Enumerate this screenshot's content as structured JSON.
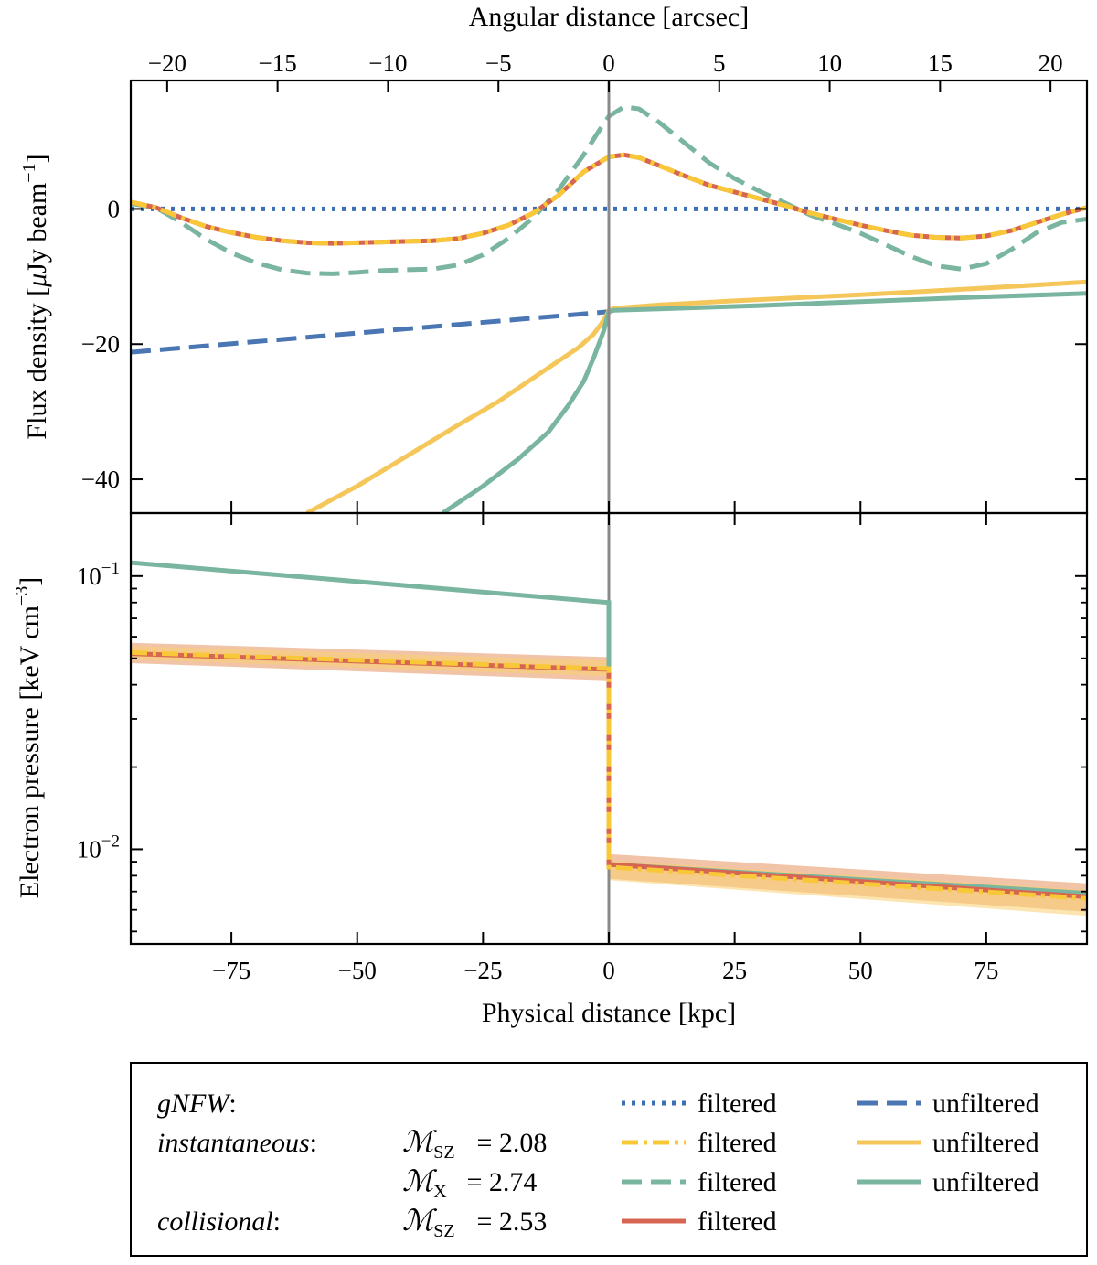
{
  "chart_data": [
    {
      "type": "line",
      "panel": "top",
      "xlabel_top": "Angular distance [arcsec]",
      "ylabel_prefix": "Flux density [",
      "ylabel_mu": "μ",
      "ylabel_unit": "Jy beam",
      "ylabel_exp": "−1",
      "ylabel_suffix": "]",
      "xlim_kpc": [
        -95,
        95
      ],
      "ylim": [
        -45,
        19
      ],
      "top_xticks": [
        -20,
        -15,
        -10,
        -5,
        0,
        5,
        10,
        15,
        20
      ],
      "top_xtick_labels": [
        "−20",
        "−15",
        "−10",
        "−5",
        "0",
        "5",
        "10",
        "15",
        "20"
      ],
      "yticks": [
        0,
        -20,
        -40
      ],
      "ytick_labels": [
        "0",
        "−20",
        "−40"
      ],
      "grid": false,
      "series": [
        {
          "id": "gnfw_filtered",
          "color": "#3b6eb5",
          "style": "dotted",
          "x": [
            -95,
            95
          ],
          "y": [
            0,
            0
          ]
        },
        {
          "id": "gnfw_unfiltered",
          "color": "#4a76b4",
          "style": "dashed",
          "x": [
            -95,
            0
          ],
          "y": [
            -21.2,
            -15.2
          ]
        },
        {
          "id": "inst_unfiltered",
          "color": "#f5c75a",
          "style": "solid",
          "x": [
            -60,
            -50,
            -40,
            -30,
            -22,
            -15,
            -10,
            -6,
            -3,
            -1.5,
            -0.5,
            0,
            1,
            10,
            25,
            50,
            75,
            95
          ],
          "y": [
            -45,
            -41,
            -36.5,
            -32,
            -28.5,
            -25,
            -22.5,
            -20.5,
            -18.5,
            -17,
            -15.8,
            -15,
            -14.7,
            -14.2,
            -13.6,
            -12.7,
            -11.7,
            -10.8
          ]
        },
        {
          "id": "mx_unfiltered",
          "color": "#7ab5a0",
          "style": "solid",
          "x": [
            -33,
            -25,
            -18,
            -12,
            -8,
            -5,
            -3,
            -2,
            -1,
            -0.3,
            0,
            1,
            10,
            30,
            50,
            75,
            95
          ],
          "y": [
            -45,
            -41,
            -37,
            -33,
            -29,
            -25.5,
            -22,
            -20,
            -18,
            -16,
            -15.2,
            -15,
            -14.8,
            -14.3,
            -13.7,
            -13,
            -12.5
          ]
        },
        {
          "id": "mx_filtered",
          "color": "#7ab5a0",
          "style": "dashed",
          "x": [
            -95,
            -90,
            -85,
            -80,
            -75,
            -70,
            -65,
            -60,
            -55,
            -50,
            -45,
            -40,
            -35,
            -30,
            -25,
            -20,
            -15,
            -10,
            -5,
            -2,
            0,
            3,
            6,
            10,
            15,
            20,
            25,
            30,
            35,
            40,
            45,
            50,
            55,
            60,
            65,
            70,
            75,
            80,
            85,
            90,
            95
          ],
          "y": [
            0.8,
            0.2,
            -2.0,
            -4.5,
            -6.5,
            -8.0,
            -9.0,
            -9.5,
            -9.6,
            -9.4,
            -9.1,
            -9.0,
            -8.9,
            -8.3,
            -6.8,
            -4.4,
            -1.3,
            2.8,
            8.0,
            11.5,
            13.7,
            15.1,
            14.8,
            12.8,
            9.8,
            6.8,
            4.5,
            2.6,
            0.9,
            -0.9,
            -2.2,
            -3.6,
            -5.3,
            -7.0,
            -8.4,
            -8.9,
            -8.1,
            -6.0,
            -3.5,
            -2.0,
            -1.5
          ]
        },
        {
          "id": "coll_filtered",
          "color": "#d66551",
          "style": "solid",
          "x": [
            -95,
            -90,
            -85,
            -80,
            -75,
            -70,
            -65,
            -60,
            -55,
            -50,
            -45,
            -40,
            -35,
            -30,
            -25,
            -20,
            -15,
            -10,
            -5,
            0,
            3,
            6,
            10,
            15,
            20,
            25,
            30,
            35,
            40,
            45,
            50,
            55,
            60,
            65,
            70,
            75,
            80,
            85,
            90,
            95
          ],
          "y": [
            1.0,
            0.2,
            -1.3,
            -2.6,
            -3.5,
            -4.2,
            -4.7,
            -5.0,
            -5.1,
            -5.0,
            -4.9,
            -4.8,
            -4.7,
            -4.4,
            -3.6,
            -2.4,
            -0.6,
            2.0,
            5.5,
            7.7,
            8.0,
            7.6,
            6.4,
            4.9,
            3.5,
            2.5,
            1.5,
            0.5,
            -0.6,
            -1.5,
            -2.4,
            -3.2,
            -3.9,
            -4.2,
            -4.3,
            -4.0,
            -3.2,
            -2.0,
            -0.8,
            0.2
          ]
        },
        {
          "id": "inst_filtered",
          "color": "#f9c838",
          "style": "dashdot",
          "x": [
            -95,
            -90,
            -85,
            -80,
            -75,
            -70,
            -65,
            -60,
            -55,
            -50,
            -45,
            -40,
            -35,
            -30,
            -25,
            -20,
            -15,
            -10,
            -5,
            0,
            3,
            6,
            10,
            15,
            20,
            25,
            30,
            35,
            40,
            45,
            50,
            55,
            60,
            65,
            70,
            75,
            80,
            85,
            90,
            95
          ],
          "y": [
            1.0,
            0.2,
            -1.3,
            -2.6,
            -3.5,
            -4.2,
            -4.7,
            -5.0,
            -5.1,
            -5.0,
            -4.9,
            -4.8,
            -4.7,
            -4.4,
            -3.6,
            -2.4,
            -0.6,
            2.0,
            5.5,
            7.7,
            8.0,
            7.6,
            6.4,
            4.9,
            3.5,
            2.5,
            1.5,
            0.5,
            -0.6,
            -1.5,
            -2.4,
            -3.2,
            -3.9,
            -4.2,
            -4.3,
            -4.0,
            -3.2,
            -2.0,
            -0.8,
            0.2
          ]
        }
      ]
    },
    {
      "type": "line",
      "panel": "bottom",
      "xlabel": "Physical distance [kpc]",
      "ylabel_prefix": "Electron pressure [keV cm",
      "ylabel_exp": "−3",
      "ylabel_suffix": "]",
      "xlim": [
        -95,
        95
      ],
      "ylim": [
        0.0045,
        0.17
      ],
      "yscale": "log",
      "xticks": [
        -75,
        -50,
        -25,
        0,
        25,
        50,
        75
      ],
      "xtick_labels": [
        "−75",
        "−50",
        "−25",
        "0",
        "25",
        "50",
        "75"
      ],
      "yticks_major": [
        0.1,
        0.01
      ],
      "ytick_major_labels": [
        {
          "base": "10",
          "exp": "−1"
        },
        {
          "base": "10",
          "exp": "−2"
        }
      ],
      "yticks_minor": [
        0.005,
        0.006,
        0.007,
        0.008,
        0.009,
        0.02,
        0.03,
        0.04,
        0.05,
        0.06,
        0.07,
        0.08,
        0.09
      ],
      "grid": false,
      "bands": [
        {
          "id": "coll_band",
          "color": "#e8945e",
          "opacity": 0.55,
          "x": [
            -95,
            0,
            0,
            95
          ],
          "lower": [
            0.048,
            0.0415,
            0.0078,
            0.0059
          ],
          "upper": [
            0.057,
            0.0505,
            0.0096,
            0.0075
          ]
        },
        {
          "id": "inst_band",
          "color": "#f9d070",
          "opacity": 0.55,
          "x": [
            -95,
            0,
            0,
            95
          ],
          "lower": [
            0.0495,
            0.043,
            0.0077,
            0.0057
          ],
          "upper": [
            0.0555,
            0.049,
            0.0091,
            0.0071
          ]
        }
      ],
      "series": [
        {
          "id": "mx_pressure",
          "color": "#7ab5a0",
          "style": "solid",
          "x": [
            -95,
            0,
            0,
            95
          ],
          "y": [
            0.112,
            0.08,
            0.0088,
            0.0069
          ]
        },
        {
          "id": "coll_pressure",
          "color": "#d66551",
          "style": "solid",
          "x": [
            -95,
            0,
            0,
            95
          ],
          "y": [
            0.052,
            0.0455,
            0.0088,
            0.0067
          ]
        },
        {
          "id": "inst_pressure",
          "color": "#f9c838",
          "style": "dashdot",
          "x": [
            -95,
            0,
            0,
            95
          ],
          "y": [
            0.0525,
            0.0458,
            0.0086,
            0.0066
          ]
        }
      ]
    }
  ],
  "legend": {
    "rows": [
      {
        "label": "gNFW",
        "colon": ":",
        "mach": null,
        "left": {
          "series": "gnfw_filtered",
          "text": "filtered"
        },
        "right": {
          "series": "gnfw_unfiltered",
          "text": "unfiltered"
        }
      },
      {
        "label": "instantaneous",
        "colon": ":",
        "mach": {
          "sub": "SZ",
          "value": "= 2.08"
        },
        "left": {
          "series": "inst_filtered",
          "text": "filtered"
        },
        "right": {
          "series": "inst_unfiltered",
          "text": "unfiltered"
        }
      },
      {
        "label": "",
        "colon": "",
        "mach": {
          "sub": "X",
          "value": "= 2.74"
        },
        "left": {
          "series": "mx_filtered",
          "text": "filtered"
        },
        "right": {
          "series": "mx_unfiltered",
          "text": "unfiltered"
        }
      },
      {
        "label": "collisional",
        "colon": ":",
        "mach": {
          "sub": "SZ",
          "value": "= 2.53"
        },
        "left": {
          "series": "coll_filtered",
          "text": "filtered"
        },
        "right": null
      }
    ],
    "mach_symbol": "ℳ"
  }
}
